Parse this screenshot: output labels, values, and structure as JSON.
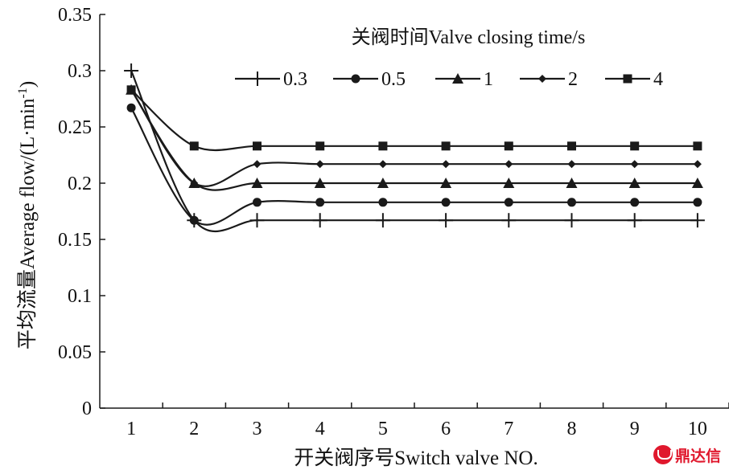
{
  "chart_data": {
    "type": "line",
    "title": "",
    "xlabel": "开关阀序号Switch valve NO.",
    "ylabel_main": "平均流量Average flow/(L·min",
    "ylabel_sup": "-1",
    "ylabel_close": ")",
    "x": [
      1,
      2,
      3,
      4,
      5,
      6,
      7,
      8,
      9,
      10
    ],
    "x_tick_labels": [
      "1",
      "2",
      "3",
      "4",
      "5",
      "6",
      "7",
      "8",
      "9",
      "10"
    ],
    "xlim": [
      0.5,
      10.5
    ],
    "ylim": [
      0,
      0.35
    ],
    "y_ticks": [
      0,
      0.05,
      0.1,
      0.15,
      0.2,
      0.25,
      0.3,
      0.35
    ],
    "y_tick_labels": [
      "0",
      "0.05",
      "0.1",
      "0.15",
      "0.2",
      "0.25",
      "0.3",
      "0.35"
    ],
    "grid": false,
    "legend_title": "关阀时间Valve closing time/s",
    "legend_position": "top-right",
    "series": [
      {
        "name": "0.3",
        "marker": "plus",
        "values": [
          0.3,
          0.167,
          0.167,
          0.167,
          0.167,
          0.167,
          0.167,
          0.167,
          0.167,
          0.167
        ]
      },
      {
        "name": "0.5",
        "marker": "circle",
        "values": [
          0.267,
          0.167,
          0.183,
          0.183,
          0.183,
          0.183,
          0.183,
          0.183,
          0.183,
          0.183
        ]
      },
      {
        "name": "1",
        "marker": "triangle",
        "values": [
          0.283,
          0.2,
          0.2,
          0.2,
          0.2,
          0.2,
          0.2,
          0.2,
          0.2,
          0.2
        ]
      },
      {
        "name": "2",
        "marker": "diamond",
        "values": [
          0.283,
          0.2,
          0.217,
          0.217,
          0.217,
          0.217,
          0.217,
          0.217,
          0.217,
          0.217
        ]
      },
      {
        "name": "4",
        "marker": "square",
        "values": [
          0.283,
          0.233,
          0.233,
          0.233,
          0.233,
          0.233,
          0.233,
          0.233,
          0.233,
          0.233
        ]
      }
    ],
    "colors": {
      "line": "#1a1a1a",
      "axis": "#1a1a1a"
    }
  },
  "watermark": {
    "text": "鼎达信",
    "logo_icon": "ddx-logo-icon",
    "color": "#e0182d"
  }
}
